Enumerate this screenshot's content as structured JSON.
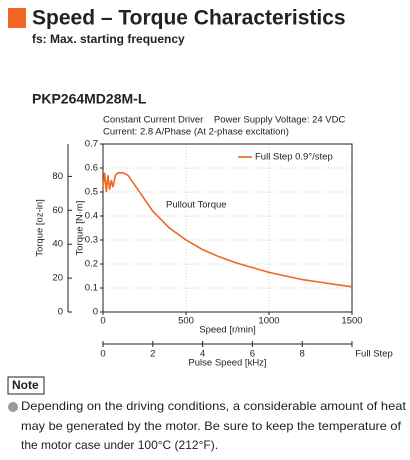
{
  "header": {
    "title": "Speed – Torque Characteristics",
    "subtitle": "fs: Max. starting frequency"
  },
  "model": "PKP264MD28M-L",
  "conditions": [
    "Constant Current Driver    Power Supply Voltage: 24 VDC",
    "Current: 2.8 A/Phase (At 2-phase excitation)"
  ],
  "chart_data": {
    "type": "line",
    "xlabel": "Speed [r/min]",
    "ylabel": "Torque [N·m]",
    "y2label": "Torque [oz-in]",
    "x2label": "Pulse Speed [kHz]",
    "annotation": "Pullout Torque",
    "x": [
      0,
      10,
      20,
      30,
      40,
      50,
      60,
      75,
      90,
      120,
      150,
      200,
      250,
      300,
      400,
      500,
      600,
      700,
      800,
      900,
      1000,
      1100,
      1200,
      1300,
      1400,
      1500
    ],
    "series": [
      {
        "name": "Full Step 0.9°/step",
        "color": "#f26522",
        "values": [
          0.52,
          0.58,
          0.5,
          0.57,
          0.51,
          0.55,
          0.52,
          0.57,
          0.58,
          0.58,
          0.57,
          0.52,
          0.47,
          0.42,
          0.35,
          0.3,
          0.26,
          0.23,
          0.205,
          0.185,
          0.165,
          0.15,
          0.135,
          0.125,
          0.115,
          0.105
        ]
      }
    ],
    "xlim": [
      0,
      1500
    ],
    "xticks": [
      0,
      500,
      1000,
      1500
    ],
    "ylim": [
      0,
      0.7
    ],
    "yticks": [
      0,
      0.1,
      0.2,
      0.3,
      0.4,
      0.5,
      0.6,
      0.7
    ],
    "y2lim": [
      0,
      99.13
    ],
    "y2ticks": [
      0,
      20,
      40,
      60,
      80
    ],
    "x2lim": [
      0,
      10
    ],
    "x2ticks": [
      0,
      2,
      4,
      6,
      8,
      {
        "value": 10,
        "label": "Full Step"
      }
    ],
    "grid": true,
    "legend": "upper right"
  },
  "note": {
    "label": "Note",
    "lines": [
      "Depending on the driving conditions, a considerable amount of heat",
      "may be generated by the motor. Be sure to keep the temperature of",
      "the motor case under 100°C (212°F)."
    ]
  }
}
